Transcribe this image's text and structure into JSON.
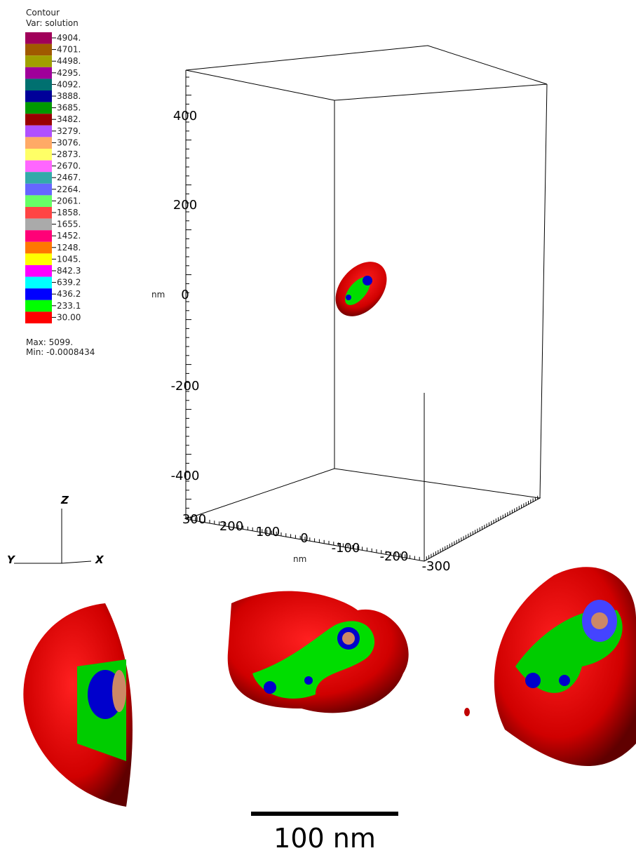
{
  "legend": {
    "title": "Contour",
    "variable": "Var: solution",
    "levels": [
      {
        "label": "4904.",
        "color": "#a0005a"
      },
      {
        "label": "4701.",
        "color": "#a05a00"
      },
      {
        "label": "4498.",
        "color": "#a0a000"
      },
      {
        "label": "4295.",
        "color": "#a0009a"
      },
      {
        "label": "4092.",
        "color": "#007070"
      },
      {
        "label": "3888.",
        "color": "#000099"
      },
      {
        "label": "3685.",
        "color": "#009900"
      },
      {
        "label": "3482.",
        "color": "#990000"
      },
      {
        "label": "3279.",
        "color": "#b050ff"
      },
      {
        "label": "3076.",
        "color": "#ffaa66"
      },
      {
        "label": "2873.",
        "color": "#ffff66"
      },
      {
        "label": "2670.",
        "color": "#ff66ff"
      },
      {
        "label": "2467.",
        "color": "#33aaaa"
      },
      {
        "label": "2264.",
        "color": "#6666ff"
      },
      {
        "label": "2061.",
        "color": "#66ff66"
      },
      {
        "label": "1858.",
        "color": "#ff4444"
      },
      {
        "label": "1655.",
        "color": "#aaaaaa"
      },
      {
        "label": "1452.",
        "color": "#ff0077"
      },
      {
        "label": "1248.",
        "color": "#ff7700"
      },
      {
        "label": "1045.",
        "color": "#ffff00"
      },
      {
        "label": "842.3",
        "color": "#ff00ff"
      },
      {
        "label": "639.2",
        "color": "#00ffff"
      },
      {
        "label": "436.2",
        "color": "#0000ff"
      },
      {
        "label": "233.1",
        "color": "#00ff00"
      },
      {
        "label": "30.00",
        "color": "#ff0000"
      }
    ],
    "max": "Max: 5099.",
    "min": "Min: -0.0008434"
  },
  "z_axis": {
    "ticks": [
      "400",
      "200",
      "0",
      "-200",
      "-400"
    ],
    "unit": "nm"
  },
  "bottom_axis": {
    "ticks": [
      "300",
      "200",
      "100",
      "0",
      "-100",
      "-200",
      "-300"
    ],
    "unit": "nm"
  },
  "triad": {
    "z": "Z",
    "y": "Y",
    "x": "X"
  },
  "scale_bar": {
    "label": "100 nm"
  }
}
